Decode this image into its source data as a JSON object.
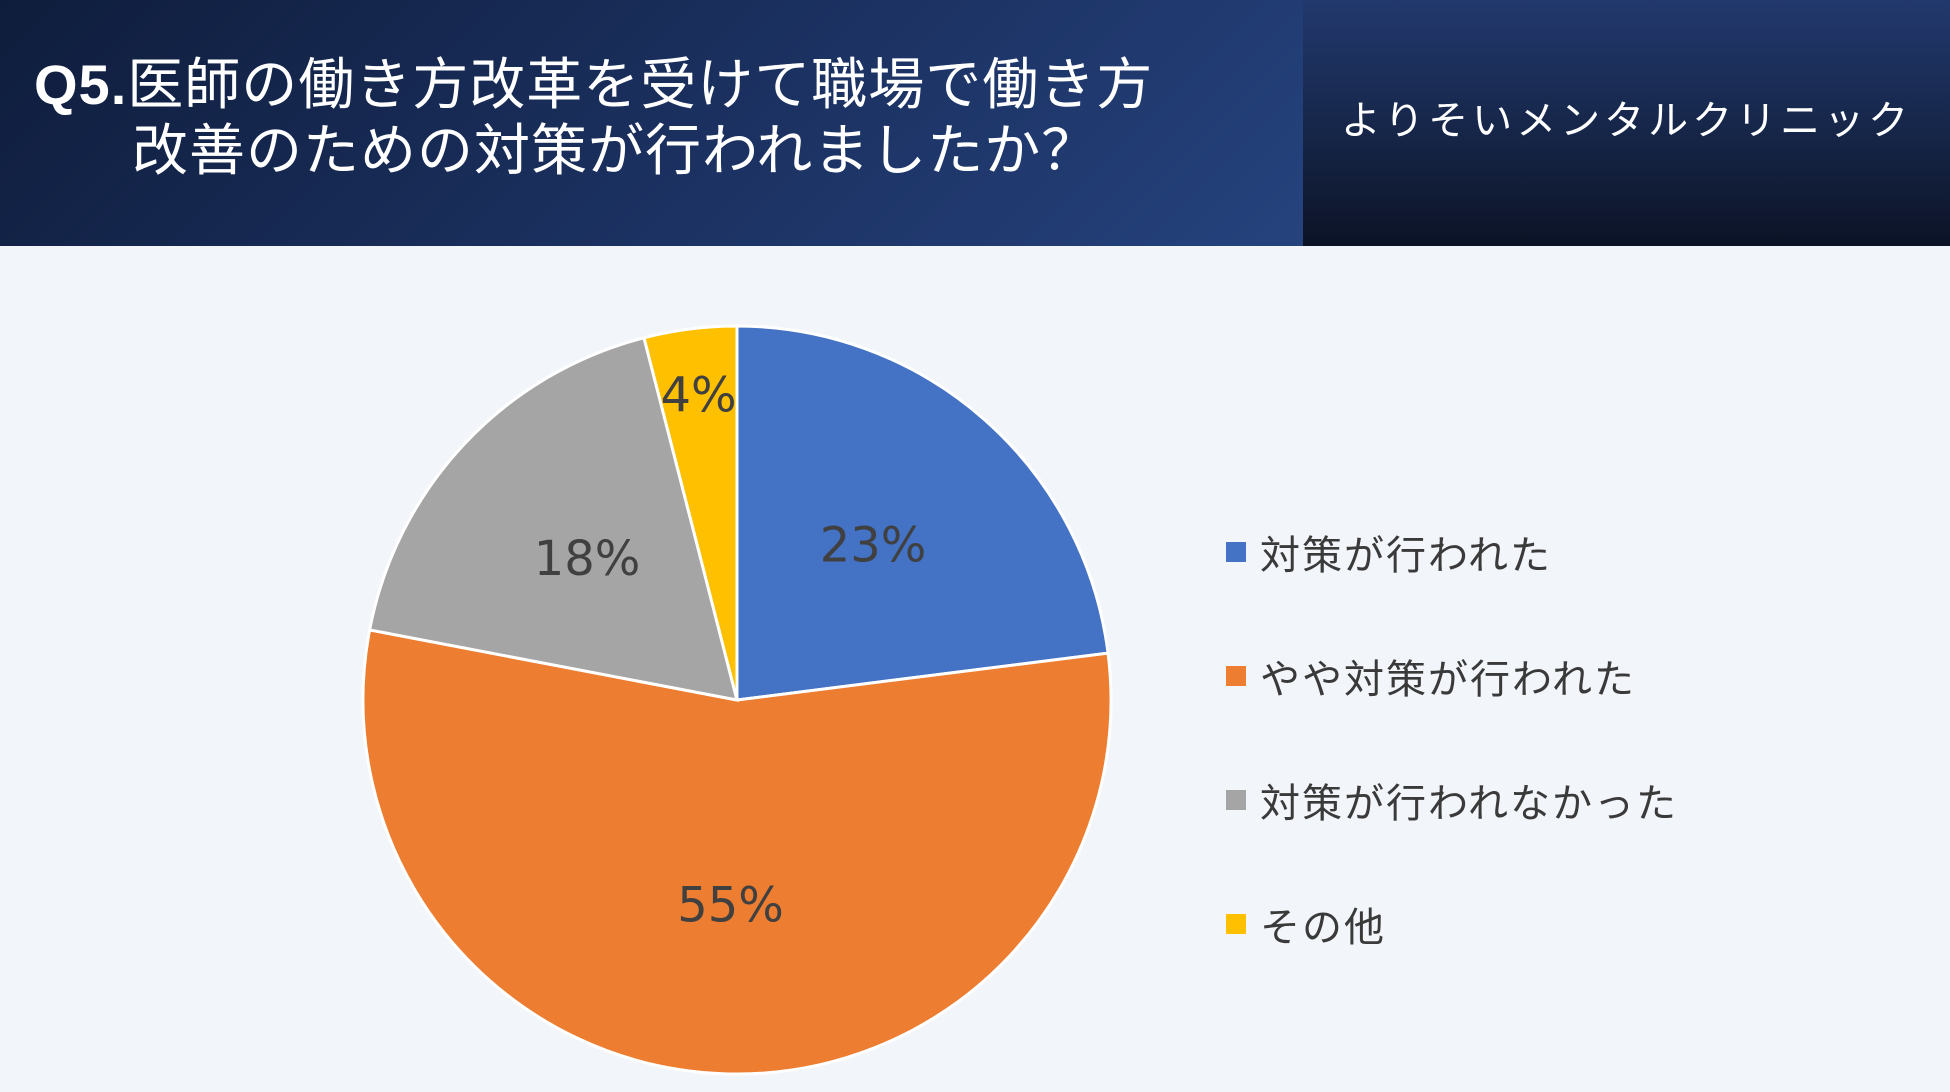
{
  "header": {
    "question_no": "Q5.",
    "title_line1": "医師の働き方改革を受けて職場で働き方",
    "title_line2": "改善のための対策が行われましたか？",
    "clinic_name": "よりそいメンタルクリニック"
  },
  "chart_data": {
    "type": "pie",
    "title": "Q5.医師の働き方改革を受けて職場で働き方改善のための対策が行われましたか？",
    "categories": [
      "対策が行われた",
      "やや対策が行われた",
      "対策が行われなかった",
      "その他"
    ],
    "values": [
      23,
      55,
      18,
      4
    ],
    "labels": [
      "23%",
      "55%",
      "18%",
      "4%"
    ],
    "colors": [
      "#4472c4",
      "#ed7d31",
      "#a5a5a5",
      "#ffc000"
    ],
    "start_angle_deg": 0,
    "direction": "clockwise",
    "legend_position": "right"
  }
}
